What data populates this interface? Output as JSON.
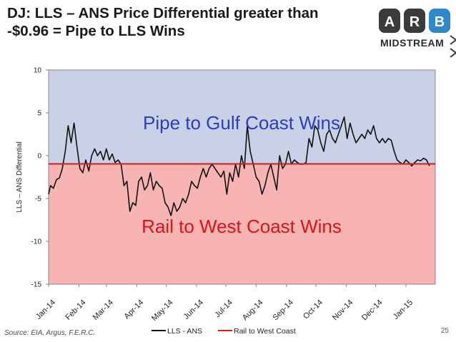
{
  "slide": {
    "title": "DJ: LLS – ANS Price Differential greater than -$0.96 = Pipe to LLS Wins",
    "logo_letters": [
      "A",
      "R",
      "B"
    ],
    "logo_text": "MIDSTREAM",
    "source": "Source: EIA, Argus, F.E.R.C.",
    "page_number": "25",
    "colors": {
      "upper_zone": "#c9d1e6",
      "lower_zone": "#f8b3b3",
      "series_line": "#111111",
      "threshold_line": "#e0161a",
      "zone_text_upper": "#2c3dc4",
      "zone_text_lower": "#d8141c",
      "logo_dark": "#3b3b3b",
      "logo_blue": "#2d89c8"
    }
  },
  "chart_data": {
    "type": "line",
    "title": "",
    "xlabel": "",
    "ylabel": "LLS – ANS Differential",
    "ylim": [
      -15,
      10
    ],
    "yticks": [
      -15,
      -10,
      -5,
      0,
      5,
      10
    ],
    "ytick_labels": [
      "-15",
      "-10",
      "-5",
      "0",
      "5",
      "10"
    ],
    "xlim": [
      "2014-01-01",
      "2015-01-31"
    ],
    "xtick_labels": [
      "Jan-14",
      "Feb-14",
      "Mar-14",
      "Apr-14",
      "May-14",
      "Jun-14",
      "Jul-14",
      "Aug-14",
      "Sep-14",
      "Oct-14",
      "Nov-14",
      "Dec-14",
      "Jan-15"
    ],
    "grid": false,
    "legend_position": "bottom",
    "threshold": -0.96,
    "zones": [
      {
        "label": "Pipe to Gulf Coast Wins",
        "range": [
          -0.96,
          10
        ]
      },
      {
        "label": "Rail to West Coast Wins",
        "range": [
          -15,
          -0.96
        ]
      }
    ],
    "series": [
      {
        "name": "LLS - ANS",
        "x": [
          "2014-01-01",
          "2014-01-03",
          "2014-01-06",
          "2014-01-09",
          "2014-01-12",
          "2014-01-15",
          "2014-01-18",
          "2014-01-21",
          "2014-01-24",
          "2014-01-27",
          "2014-01-30",
          "2014-02-02",
          "2014-02-05",
          "2014-02-08",
          "2014-02-11",
          "2014-02-14",
          "2014-02-17",
          "2014-02-20",
          "2014-02-23",
          "2014-02-26",
          "2014-03-01",
          "2014-03-04",
          "2014-03-07",
          "2014-03-10",
          "2014-03-13",
          "2014-03-16",
          "2014-03-19",
          "2014-03-22",
          "2014-03-25",
          "2014-03-28",
          "2014-03-31",
          "2014-04-03",
          "2014-04-06",
          "2014-04-09",
          "2014-04-12",
          "2014-04-15",
          "2014-04-18",
          "2014-04-21",
          "2014-04-24",
          "2014-04-27",
          "2014-04-30",
          "2014-05-03",
          "2014-05-06",
          "2014-05-09",
          "2014-05-12",
          "2014-05-15",
          "2014-05-18",
          "2014-05-21",
          "2014-05-24",
          "2014-05-27",
          "2014-05-30",
          "2014-06-02",
          "2014-06-05",
          "2014-06-08",
          "2014-06-11",
          "2014-06-14",
          "2014-06-17",
          "2014-06-20",
          "2014-06-23",
          "2014-06-26",
          "2014-06-29",
          "2014-07-02",
          "2014-07-05",
          "2014-07-08",
          "2014-07-11",
          "2014-07-14",
          "2014-07-17",
          "2014-07-20",
          "2014-07-23",
          "2014-07-26",
          "2014-07-29",
          "2014-08-01",
          "2014-08-04",
          "2014-08-07",
          "2014-08-10",
          "2014-08-13",
          "2014-08-16",
          "2014-08-19",
          "2014-08-22",
          "2014-08-25",
          "2014-08-28",
          "2014-08-31",
          "2014-09-03",
          "2014-09-06",
          "2014-09-09",
          "2014-09-12",
          "2014-09-15",
          "2014-09-18",
          "2014-09-21",
          "2014-09-24",
          "2014-09-27",
          "2014-09-30",
          "2014-10-03",
          "2014-10-06",
          "2014-10-09",
          "2014-10-12",
          "2014-10-15",
          "2014-10-18",
          "2014-10-21",
          "2014-10-24",
          "2014-10-27",
          "2014-10-30",
          "2014-11-02",
          "2014-11-05",
          "2014-11-08",
          "2014-11-11",
          "2014-11-14",
          "2014-11-17",
          "2014-11-20",
          "2014-11-23",
          "2014-11-26",
          "2014-11-29",
          "2014-12-02",
          "2014-12-05",
          "2014-12-08",
          "2014-12-11",
          "2014-12-14",
          "2014-12-17",
          "2014-12-20",
          "2014-12-23",
          "2014-12-26",
          "2014-12-29",
          "2015-01-01",
          "2015-01-04",
          "2015-01-07",
          "2015-01-10",
          "2015-01-13",
          "2015-01-16",
          "2015-01-19",
          "2015-01-22",
          "2015-01-25"
        ],
        "y": [
          -4.5,
          -3.5,
          -3.8,
          -2.8,
          -2.6,
          -1.5,
          0.5,
          3.5,
          1.5,
          3.8,
          1.0,
          -1.5,
          -2.0,
          -0.5,
          -1.8,
          0.0,
          0.8,
          0.0,
          0.5,
          -0.5,
          0.8,
          -0.5,
          0.2,
          -0.8,
          -0.5,
          -1.0,
          -3.5,
          -3.0,
          -6.5,
          -5.5,
          -5.8,
          -3.0,
          -2.5,
          -4.0,
          -3.5,
          -2.0,
          -4.0,
          -3.0,
          -3.5,
          -3.8,
          -5.5,
          -6.0,
          -7.0,
          -5.5,
          -6.5,
          -6.0,
          -5.0,
          -5.5,
          -4.5,
          -3.0,
          -3.5,
          -3.8,
          -2.5,
          -1.5,
          -2.5,
          -1.5,
          -1.0,
          -1.5,
          -2.0,
          -2.5,
          -1.8,
          -4.5,
          -2.0,
          -3.0,
          -1.0,
          -2.5,
          0.0,
          -1.5,
          3.5,
          0.5,
          -1.0,
          -2.5,
          -3.0,
          -4.5,
          -3.5,
          -2.0,
          -1.0,
          -2.5,
          -4.0,
          0.0,
          -1.5,
          -1.0,
          0.5,
          -1.0,
          -0.5,
          -0.8,
          -1.0,
          -1.0,
          -0.8,
          2.0,
          1.0,
          3.5,
          3.0,
          1.5,
          0.5,
          2.5,
          3.0,
          2.0,
          1.5,
          2.5,
          3.5,
          4.5,
          2.0,
          3.8,
          2.5,
          1.5,
          2.0,
          2.5,
          2.0,
          3.0,
          2.5,
          3.5,
          2.0,
          1.5,
          2.0,
          1.5,
          2.0,
          1.8,
          0.5,
          -0.5,
          -0.8,
          -1.0,
          -0.5,
          -0.8,
          -1.2,
          -0.8,
          -0.5,
          -0.6,
          -0.3,
          -0.5,
          -1.2
        ]
      },
      {
        "name": "Rail to West Coast",
        "x": [
          "2014-01-01",
          "2015-01-31"
        ],
        "y": [
          -0.96,
          -0.96
        ]
      }
    ]
  }
}
